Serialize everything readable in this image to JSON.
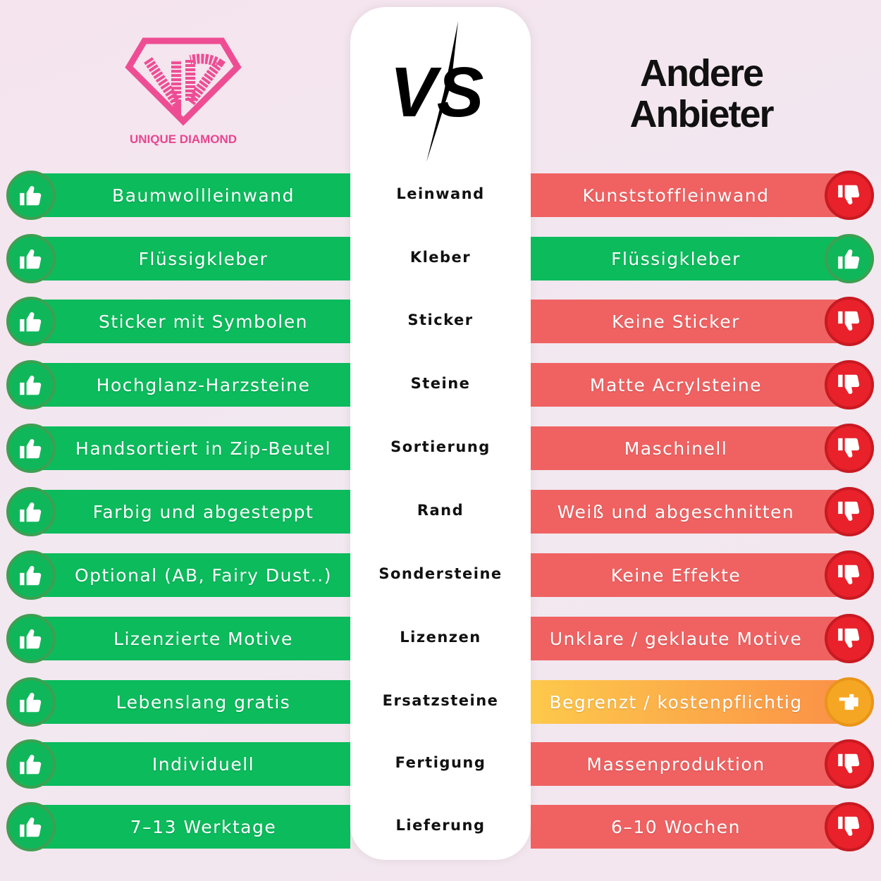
{
  "logo": {
    "text": "UNIQUE DIAMOND",
    "color": "#e8458f"
  },
  "vs_label": "VS",
  "competitor_title_line1": "Andere",
  "competitor_title_line2": "Anbieter",
  "colors": {
    "good": "#0cbb5c",
    "bad": "#f06262",
    "neutral": "#fdc94b"
  },
  "rows": [
    {
      "category": "Leinwand",
      "ours": "Baumwollleinwand",
      "theirs": "Kunststoffleinwand",
      "theirs_rating": "bad"
    },
    {
      "category": "Kleber",
      "ours": "Flüssigkleber",
      "theirs": "Flüssigkleber",
      "theirs_rating": "good"
    },
    {
      "category": "Sticker",
      "ours": "Sticker mit Symbolen",
      "theirs": "Keine Sticker",
      "theirs_rating": "bad"
    },
    {
      "category": "Steine",
      "ours": "Hochglanz-Harzsteine",
      "theirs": "Matte Acrylsteine",
      "theirs_rating": "bad"
    },
    {
      "category": "Sortierung",
      "ours": "Handsortiert in Zip-Beutel",
      "theirs": "Maschinell",
      "theirs_rating": "bad"
    },
    {
      "category": "Rand",
      "ours": "Farbig und abgesteppt",
      "theirs": "Weiß und abgeschnitten",
      "theirs_rating": "bad"
    },
    {
      "category": "Sondersteine",
      "ours": "Optional (AB, Fairy Dust..)",
      "theirs": "Keine Effekte",
      "theirs_rating": "bad"
    },
    {
      "category": "Lizenzen",
      "ours": "Lizenzierte Motive",
      "theirs": "Unklare / geklaute Motive",
      "theirs_rating": "bad"
    },
    {
      "category": "Ersatzsteine",
      "ours": "Lebenslang gratis",
      "theirs": "Begrenzt / kostenpflichtig",
      "theirs_rating": "neutral"
    },
    {
      "category": "Fertigung",
      "ours": "Individuell",
      "theirs": "Massenproduktion",
      "theirs_rating": "bad"
    },
    {
      "category": "Lieferung",
      "ours": "7–13 Werktage",
      "theirs": "6–10 Wochen",
      "theirs_rating": "bad"
    }
  ]
}
